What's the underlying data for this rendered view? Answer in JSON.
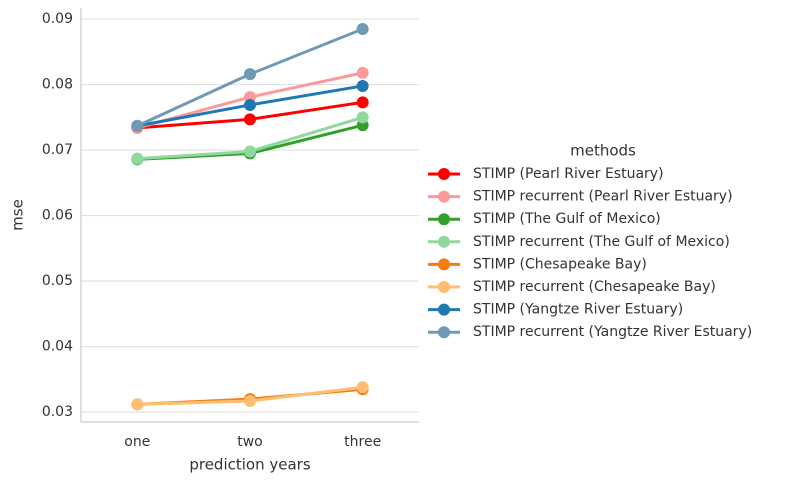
{
  "chart_data": {
    "type": "line",
    "x_label": "prediction years",
    "y_label": "mse",
    "legend_title": "methods",
    "legend_position": "right",
    "grid": true,
    "categories": [
      "one",
      "two",
      "three"
    ],
    "ylim": [
      0.0285,
      0.0917
    ],
    "yticks": [
      0.03,
      0.04,
      0.05,
      0.06,
      0.07,
      0.08,
      0.09
    ],
    "series": [
      {
        "name": "STIMP (Pearl River Estuary)",
        "color": "#ff0000",
        "values": [
          0.0734,
          0.0747,
          0.0773
        ]
      },
      {
        "name": "STIMP recurrent (Pearl River Estuary)",
        "color": "#fb9a99",
        "values": [
          0.0734,
          0.0781,
          0.0818
        ]
      },
      {
        "name": "STIMP (The Gulf of Mexico)",
        "color": "#33a02c",
        "values": [
          0.0686,
          0.0695,
          0.0738
        ]
      },
      {
        "name": "STIMP recurrent (The Gulf of Mexico)",
        "color": "#8fd89e",
        "values": [
          0.0687,
          0.0698,
          0.075
        ]
      },
      {
        "name": "STIMP (Chesapeake Bay)",
        "color": "#f57b13",
        "values": [
          0.0312,
          0.032,
          0.0335
        ]
      },
      {
        "name": "STIMP recurrent (Chesapeake Bay)",
        "color": "#fdbf6f",
        "values": [
          0.0312,
          0.0317,
          0.0338
        ]
      },
      {
        "name": "STIMP (Yangtze River Estuary)",
        "color": "#1f78b4",
        "values": [
          0.0737,
          0.0769,
          0.0798
        ]
      },
      {
        "name": "STIMP recurrent (Yangtze River Estuary)",
        "color": "#6f9ab5",
        "values": [
          0.0737,
          0.0816,
          0.0885
        ]
      }
    ]
  }
}
